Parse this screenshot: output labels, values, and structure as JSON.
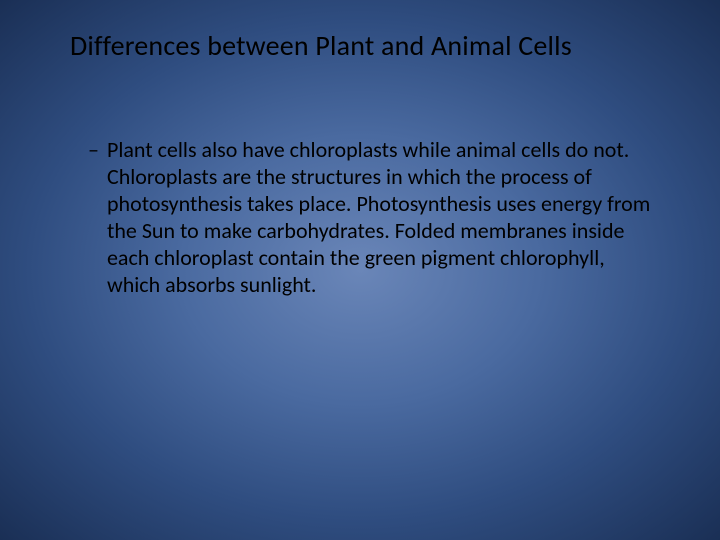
{
  "slide": {
    "title": "Differences between Plant and Animal Cells",
    "bullet_dash": "–",
    "body_text": "Plant cells also have chloroplasts while animal cells do not.  Chloroplasts are the structures in which the process of photosynthesis takes place.  Photosynthesis uses energy from the Sun to make carbohydrates.  Folded membranes inside each chloroplast contain the green pigment chlorophyll, which absorbs sunlight.",
    "background_gradient": {
      "type": "radial",
      "center_color": "#6a86b8",
      "mid_color": "#2f4d80",
      "edge_color": "#1a2f55"
    },
    "title_color": "#000000",
    "body_color": "#000000",
    "title_fontsize": 28,
    "body_fontsize": 22,
    "body_lineheight": 27,
    "font_family": "Calibri"
  }
}
